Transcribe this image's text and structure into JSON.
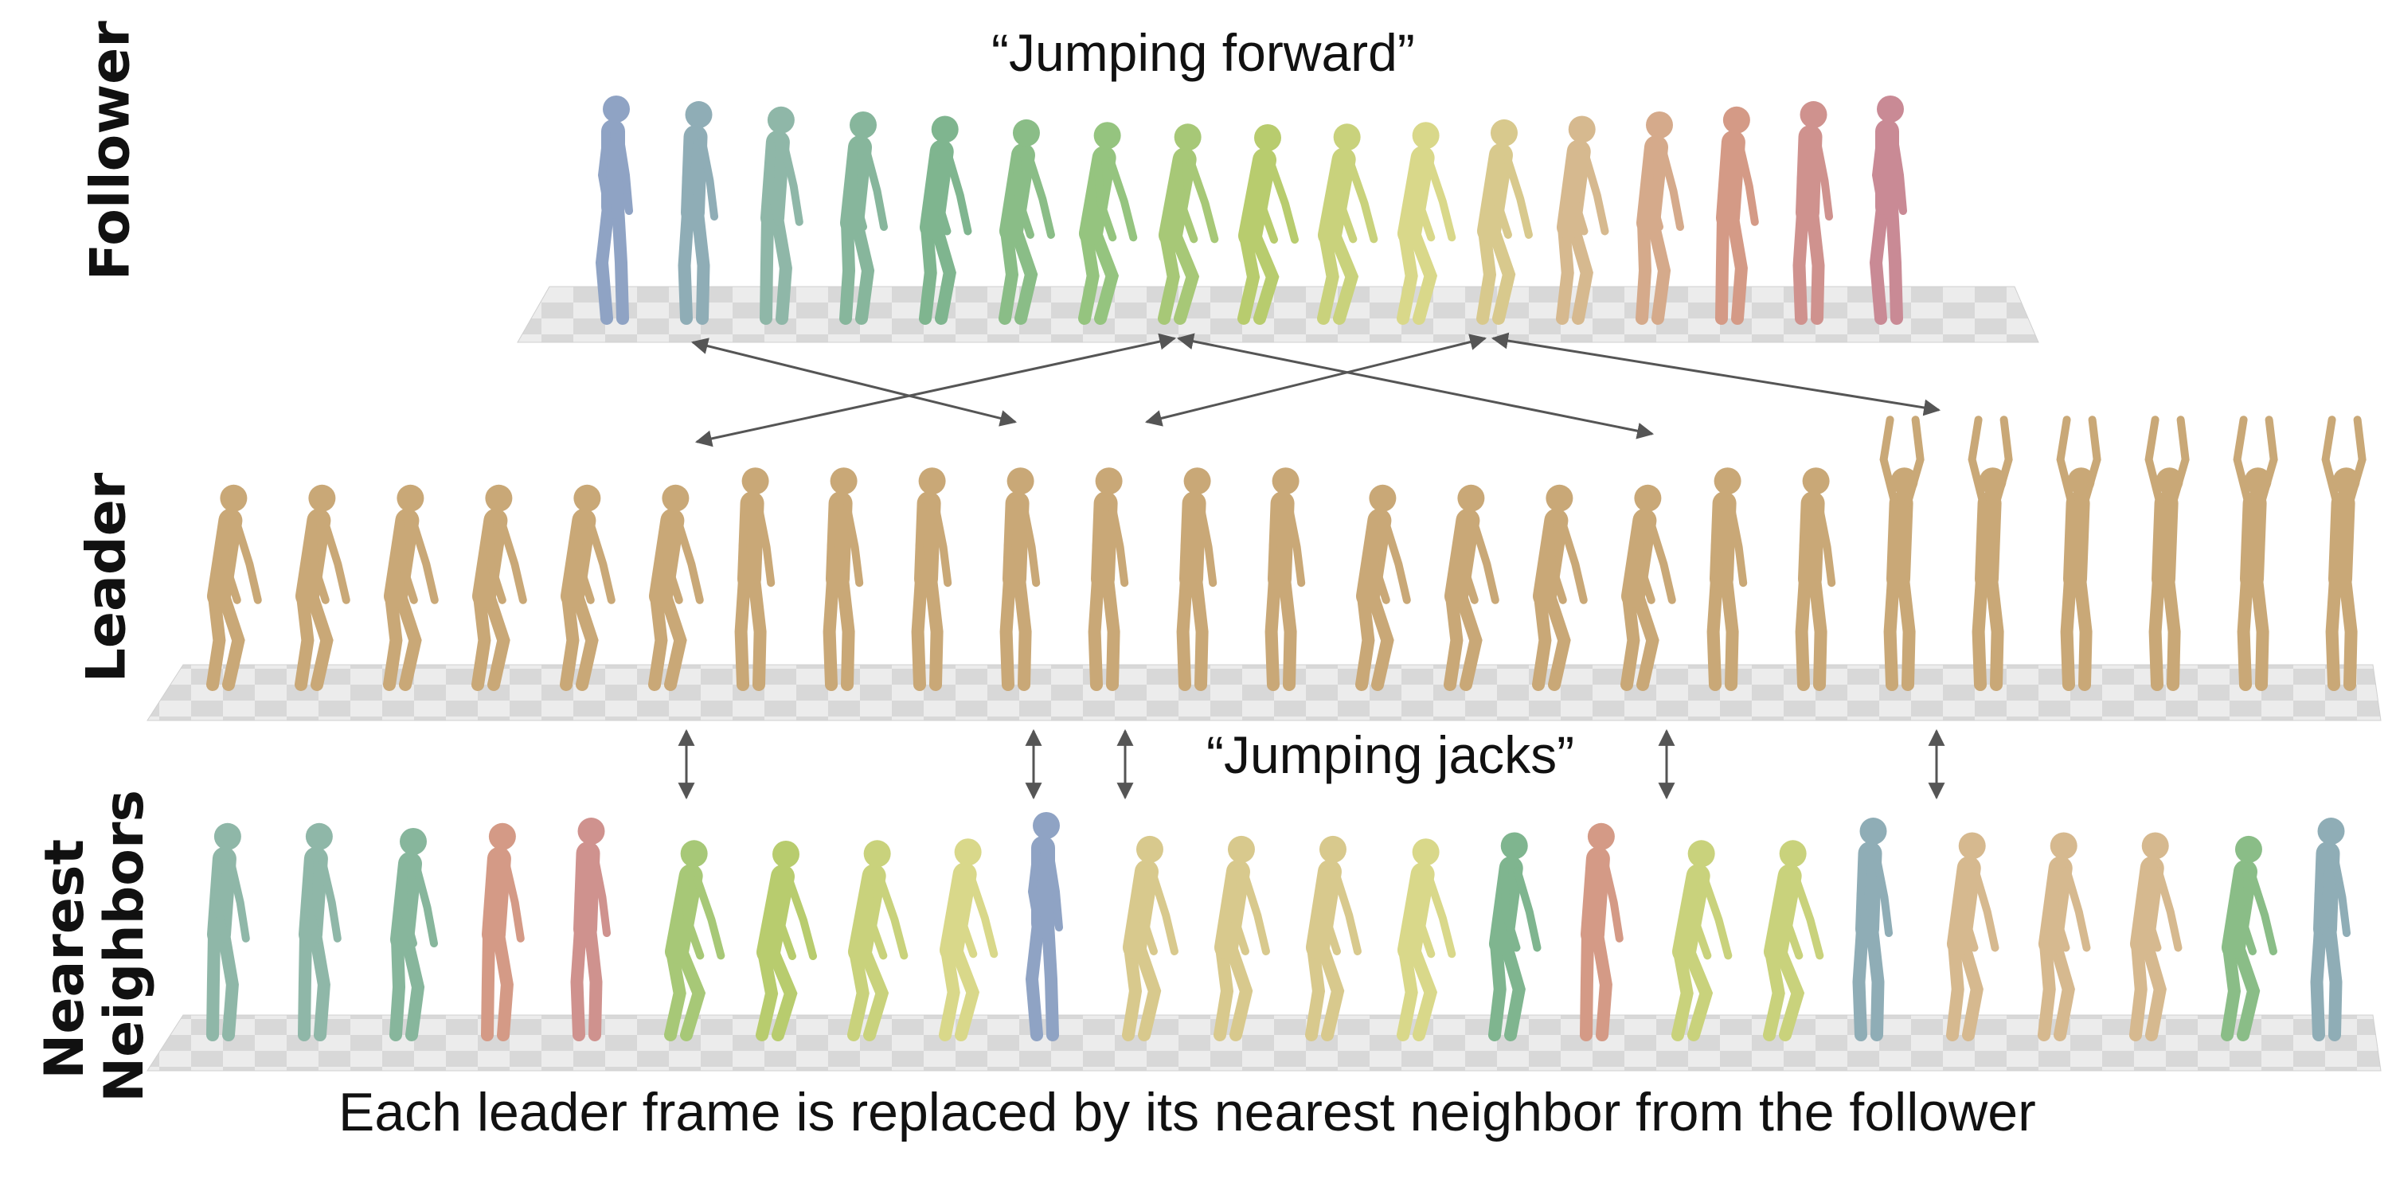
{
  "labels": {
    "follower": "Follower",
    "leader": "Leader",
    "nearest_line1": "Nearest",
    "nearest_line2": "Neighbors"
  },
  "captions": {
    "follower_motion": "“Jumping forward”",
    "leader_motion": "“Jumping jacks”",
    "bottom": "Each leader frame is replaced by its nearest neighbor from the follower"
  },
  "colors": {
    "leader_figure": "#c9a877",
    "follower_gradient": [
      "#8fa3c4",
      "#8fb7a8",
      "#7fb58f",
      "#95c47f",
      "#b8cc6e",
      "#d9d88a",
      "#d6b98f",
      "#d49a86",
      "#c98a95"
    ],
    "arrow": "#555555",
    "floor_light": "#e8e8e8",
    "floor_dark": "#cfcfcf"
  }
}
